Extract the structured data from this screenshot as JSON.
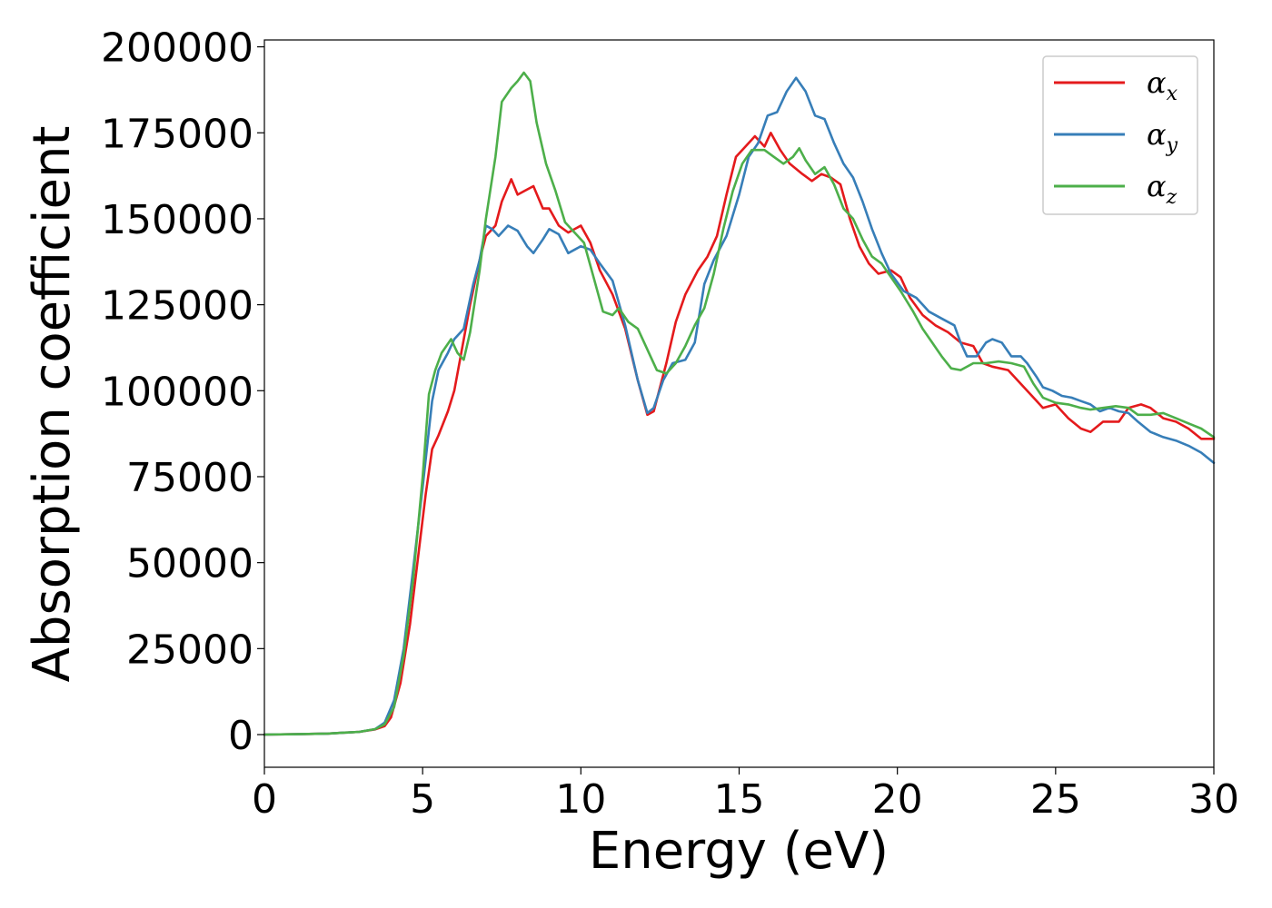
{
  "chart_data": {
    "type": "line",
    "title": "",
    "xlabel": "Energy (eV)",
    "ylabel": "Absorption coefficient",
    "xlim": [
      0,
      30
    ],
    "ylim": [
      -9500,
      202000
    ],
    "xticks": [
      0,
      5,
      10,
      15,
      20,
      25,
      30
    ],
    "yticks": [
      0,
      25000,
      50000,
      75000,
      100000,
      125000,
      150000,
      175000,
      200000
    ],
    "grid": false,
    "legend_position": "top-right",
    "series": [
      {
        "name": "αx",
        "label_base": "α",
        "label_sub": "x",
        "color": "#e41a1c",
        "points": [
          [
            0,
            0
          ],
          [
            1,
            100
          ],
          [
            2,
            300
          ],
          [
            3,
            800
          ],
          [
            3.5,
            1500
          ],
          [
            3.8,
            2500
          ],
          [
            4.0,
            5000
          ],
          [
            4.3,
            15000
          ],
          [
            4.6,
            32000
          ],
          [
            4.9,
            55000
          ],
          [
            5.1,
            70000
          ],
          [
            5.3,
            83000
          ],
          [
            5.5,
            87000
          ],
          [
            5.8,
            94000
          ],
          [
            6.0,
            100000
          ],
          [
            6.2,
            110000
          ],
          [
            6.5,
            125000
          ],
          [
            6.8,
            138000
          ],
          [
            7.0,
            145000
          ],
          [
            7.3,
            148000
          ],
          [
            7.5,
            155000
          ],
          [
            7.8,
            161500
          ],
          [
            8.0,
            157000
          ],
          [
            8.2,
            158000
          ],
          [
            8.5,
            159500
          ],
          [
            8.8,
            153000
          ],
          [
            9.0,
            153000
          ],
          [
            9.3,
            148000
          ],
          [
            9.6,
            146000
          ],
          [
            10.0,
            148000
          ],
          [
            10.3,
            143000
          ],
          [
            10.6,
            135000
          ],
          [
            11.0,
            128000
          ],
          [
            11.4,
            118000
          ],
          [
            11.8,
            103000
          ],
          [
            12.1,
            93000
          ],
          [
            12.3,
            94000
          ],
          [
            12.7,
            108000
          ],
          [
            13.0,
            120000
          ],
          [
            13.3,
            128000
          ],
          [
            13.7,
            135000
          ],
          [
            14.0,
            139000
          ],
          [
            14.3,
            145000
          ],
          [
            14.6,
            157000
          ],
          [
            14.9,
            168000
          ],
          [
            15.2,
            171000
          ],
          [
            15.5,
            174000
          ],
          [
            15.8,
            171000
          ],
          [
            16.0,
            175000
          ],
          [
            16.3,
            170000
          ],
          [
            16.6,
            166000
          ],
          [
            17.0,
            163000
          ],
          [
            17.3,
            161000
          ],
          [
            17.6,
            163000
          ],
          [
            17.9,
            162000
          ],
          [
            18.2,
            160000
          ],
          [
            18.5,
            150000
          ],
          [
            18.8,
            142000
          ],
          [
            19.1,
            137000
          ],
          [
            19.4,
            134000
          ],
          [
            19.8,
            135000
          ],
          [
            20.1,
            133000
          ],
          [
            20.4,
            127000
          ],
          [
            20.8,
            122000
          ],
          [
            21.2,
            119000
          ],
          [
            21.6,
            117000
          ],
          [
            22.0,
            114000
          ],
          [
            22.4,
            113000
          ],
          [
            22.7,
            108000
          ],
          [
            23.0,
            107000
          ],
          [
            23.5,
            106000
          ],
          [
            24.0,
            101000
          ],
          [
            24.3,
            98000
          ],
          [
            24.6,
            95000
          ],
          [
            25.0,
            96000
          ],
          [
            25.4,
            92000
          ],
          [
            25.8,
            89000
          ],
          [
            26.1,
            88000
          ],
          [
            26.5,
            91000
          ],
          [
            27.0,
            91000
          ],
          [
            27.3,
            95000
          ],
          [
            27.7,
            96000
          ],
          [
            28.0,
            95000
          ],
          [
            28.4,
            92000
          ],
          [
            28.8,
            91000
          ],
          [
            29.2,
            89000
          ],
          [
            29.6,
            86000
          ],
          [
            30.0,
            86000
          ]
        ]
      },
      {
        "name": "αy",
        "label_base": "α",
        "label_sub": "y",
        "color": "#377eb8",
        "points": [
          [
            0,
            0
          ],
          [
            1,
            100
          ],
          [
            2,
            300
          ],
          [
            3,
            800
          ],
          [
            3.5,
            1600
          ],
          [
            3.8,
            3500
          ],
          [
            4.1,
            10000
          ],
          [
            4.4,
            25000
          ],
          [
            4.7,
            48000
          ],
          [
            5.0,
            72000
          ],
          [
            5.3,
            97000
          ],
          [
            5.5,
            106000
          ],
          [
            5.8,
            111000
          ],
          [
            6.0,
            115000
          ],
          [
            6.3,
            118000
          ],
          [
            6.6,
            131000
          ],
          [
            6.8,
            138000
          ],
          [
            7.0,
            148000
          ],
          [
            7.2,
            147000
          ],
          [
            7.4,
            145000
          ],
          [
            7.7,
            148000
          ],
          [
            8.0,
            146500
          ],
          [
            8.3,
            142000
          ],
          [
            8.5,
            140000
          ],
          [
            8.8,
            144000
          ],
          [
            9.0,
            147000
          ],
          [
            9.3,
            145500
          ],
          [
            9.6,
            140000
          ],
          [
            10.0,
            142000
          ],
          [
            10.3,
            141000
          ],
          [
            10.6,
            137000
          ],
          [
            11.0,
            132000
          ],
          [
            11.4,
            119000
          ],
          [
            11.8,
            103000
          ],
          [
            12.1,
            93500
          ],
          [
            12.3,
            95000
          ],
          [
            12.6,
            103000
          ],
          [
            12.9,
            108000
          ],
          [
            13.3,
            109000
          ],
          [
            13.6,
            114000
          ],
          [
            13.9,
            131000
          ],
          [
            14.2,
            138000
          ],
          [
            14.6,
            145000
          ],
          [
            15.0,
            157000
          ],
          [
            15.3,
            168000
          ],
          [
            15.6,
            172000
          ],
          [
            15.9,
            180000
          ],
          [
            16.2,
            181000
          ],
          [
            16.5,
            187000
          ],
          [
            16.8,
            191000
          ],
          [
            17.1,
            187000
          ],
          [
            17.4,
            180000
          ],
          [
            17.7,
            179000
          ],
          [
            18.0,
            172000
          ],
          [
            18.3,
            166000
          ],
          [
            18.6,
            162000
          ],
          [
            18.9,
            155000
          ],
          [
            19.2,
            147000
          ],
          [
            19.5,
            140000
          ],
          [
            19.8,
            134000
          ],
          [
            20.2,
            129000
          ],
          [
            20.6,
            127000
          ],
          [
            21.0,
            123000
          ],
          [
            21.4,
            121000
          ],
          [
            21.8,
            119000
          ],
          [
            22.0,
            114000
          ],
          [
            22.2,
            110000
          ],
          [
            22.5,
            110000
          ],
          [
            22.8,
            114000
          ],
          [
            23.0,
            115000
          ],
          [
            23.3,
            114000
          ],
          [
            23.6,
            110000
          ],
          [
            23.9,
            110000
          ],
          [
            24.1,
            108000
          ],
          [
            24.4,
            104000
          ],
          [
            24.6,
            101000
          ],
          [
            24.9,
            100000
          ],
          [
            25.2,
            98500
          ],
          [
            25.5,
            98000
          ],
          [
            25.8,
            97000
          ],
          [
            26.1,
            96000
          ],
          [
            26.4,
            94000
          ],
          [
            26.7,
            95000
          ],
          [
            27.0,
            94000
          ],
          [
            27.3,
            93500
          ],
          [
            27.6,
            91000
          ],
          [
            28.0,
            88000
          ],
          [
            28.4,
            86500
          ],
          [
            28.8,
            85500
          ],
          [
            29.2,
            84000
          ],
          [
            29.6,
            82000
          ],
          [
            30.0,
            79000
          ]
        ]
      },
      {
        "name": "αz",
        "label_base": "α",
        "label_sub": "z",
        "color": "#4daf4a",
        "points": [
          [
            0,
            0
          ],
          [
            1,
            100
          ],
          [
            2,
            300
          ],
          [
            3,
            800
          ],
          [
            3.5,
            1600
          ],
          [
            3.8,
            3000
          ],
          [
            4.1,
            8000
          ],
          [
            4.4,
            23000
          ],
          [
            4.7,
            45000
          ],
          [
            5.0,
            75000
          ],
          [
            5.2,
            99000
          ],
          [
            5.4,
            106000
          ],
          [
            5.6,
            111000
          ],
          [
            5.9,
            115000
          ],
          [
            6.1,
            111000
          ],
          [
            6.3,
            109000
          ],
          [
            6.5,
            117000
          ],
          [
            6.8,
            135000
          ],
          [
            7.0,
            150000
          ],
          [
            7.3,
            168000
          ],
          [
            7.5,
            184000
          ],
          [
            7.8,
            188000
          ],
          [
            8.0,
            190000
          ],
          [
            8.2,
            192500
          ],
          [
            8.4,
            190000
          ],
          [
            8.6,
            178000
          ],
          [
            8.9,
            166000
          ],
          [
            9.2,
            158000
          ],
          [
            9.5,
            149000
          ],
          [
            9.8,
            146000
          ],
          [
            10.1,
            143000
          ],
          [
            10.4,
            133000
          ],
          [
            10.7,
            123000
          ],
          [
            11.0,
            122000
          ],
          [
            11.2,
            124000
          ],
          [
            11.5,
            120000
          ],
          [
            11.8,
            118000
          ],
          [
            12.1,
            112000
          ],
          [
            12.4,
            106000
          ],
          [
            12.7,
            105000
          ],
          [
            13.0,
            108000
          ],
          [
            13.3,
            113000
          ],
          [
            13.6,
            119000
          ],
          [
            13.9,
            124000
          ],
          [
            14.2,
            134000
          ],
          [
            14.5,
            147000
          ],
          [
            14.8,
            158000
          ],
          [
            15.1,
            166000
          ],
          [
            15.4,
            170000
          ],
          [
            15.8,
            170000
          ],
          [
            16.1,
            168000
          ],
          [
            16.4,
            166000
          ],
          [
            16.7,
            168000
          ],
          [
            16.9,
            170500
          ],
          [
            17.1,
            167000
          ],
          [
            17.4,
            163000
          ],
          [
            17.7,
            165000
          ],
          [
            18.0,
            160000
          ],
          [
            18.3,
            153000
          ],
          [
            18.6,
            150000
          ],
          [
            18.9,
            144000
          ],
          [
            19.2,
            139000
          ],
          [
            19.5,
            137000
          ],
          [
            19.8,
            133000
          ],
          [
            20.1,
            129000
          ],
          [
            20.5,
            123000
          ],
          [
            20.8,
            118000
          ],
          [
            21.1,
            114000
          ],
          [
            21.4,
            110000
          ],
          [
            21.7,
            106500
          ],
          [
            22.0,
            106000
          ],
          [
            22.4,
            108000
          ],
          [
            22.8,
            108000
          ],
          [
            23.2,
            108500
          ],
          [
            23.6,
            108000
          ],
          [
            24.0,
            107000
          ],
          [
            24.3,
            102000
          ],
          [
            24.6,
            98000
          ],
          [
            25.0,
            96500
          ],
          [
            25.4,
            96000
          ],
          [
            25.8,
            95000
          ],
          [
            26.1,
            94500
          ],
          [
            26.5,
            95000
          ],
          [
            26.9,
            95500
          ],
          [
            27.3,
            95000
          ],
          [
            27.6,
            93000
          ],
          [
            28.0,
            93000
          ],
          [
            28.4,
            93500
          ],
          [
            28.8,
            92000
          ],
          [
            29.2,
            90500
          ],
          [
            29.6,
            89000
          ],
          [
            30.0,
            86500
          ]
        ]
      }
    ]
  }
}
